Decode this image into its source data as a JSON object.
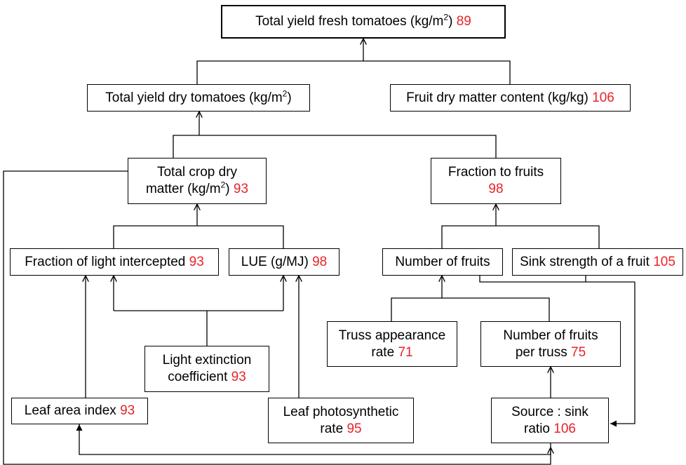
{
  "nodes": {
    "total_fresh": {
      "line1": "Total yield fresh tomatoes (kg/m",
      "sup": "2",
      "line1_end": ")",
      "value": "89"
    },
    "total_dry": {
      "line1": "Total yield dry tomatoes (kg/m",
      "sup": "2",
      "line1_end": ")"
    },
    "fruit_dm": {
      "line1": "Fruit dry matter content (kg/kg)",
      "value": "106"
    },
    "crop_dm": {
      "line1": "Total crop dry",
      "line2": "matter (kg/m",
      "sup": "2",
      "line2_end": ")",
      "value": "93"
    },
    "fraction_fruits": {
      "line1": "Fraction to fruits",
      "value": "98"
    },
    "light_intercepted": {
      "line1": "Fraction of light intercepted",
      "value": "93"
    },
    "lue": {
      "line1": "LUE (g/MJ)",
      "value": "98"
    },
    "number_fruits": {
      "line1": "Number of fruits"
    },
    "sink_strength": {
      "line1": "Sink strength of a fruit",
      "value": "105"
    },
    "truss_rate": {
      "line1": "Truss appearance",
      "line2": "rate",
      "value": "71"
    },
    "fruits_per_truss": {
      "line1": "Number of fruits",
      "line2": "per truss",
      "value": "75"
    },
    "extinction": {
      "line1": "Light extinction",
      "line2": "coefficient",
      "value": "93"
    },
    "lai": {
      "line1": "Leaf area index",
      "value": "93"
    },
    "photosynthetic": {
      "line1": "Leaf photosynthetic",
      "line2": "rate",
      "value": "95"
    },
    "source_sink": {
      "line1": "Source : sink",
      "line2": "ratio",
      "value": "106"
    }
  },
  "colors": {
    "value_text": "#e8232a",
    "lines": "#000000"
  }
}
